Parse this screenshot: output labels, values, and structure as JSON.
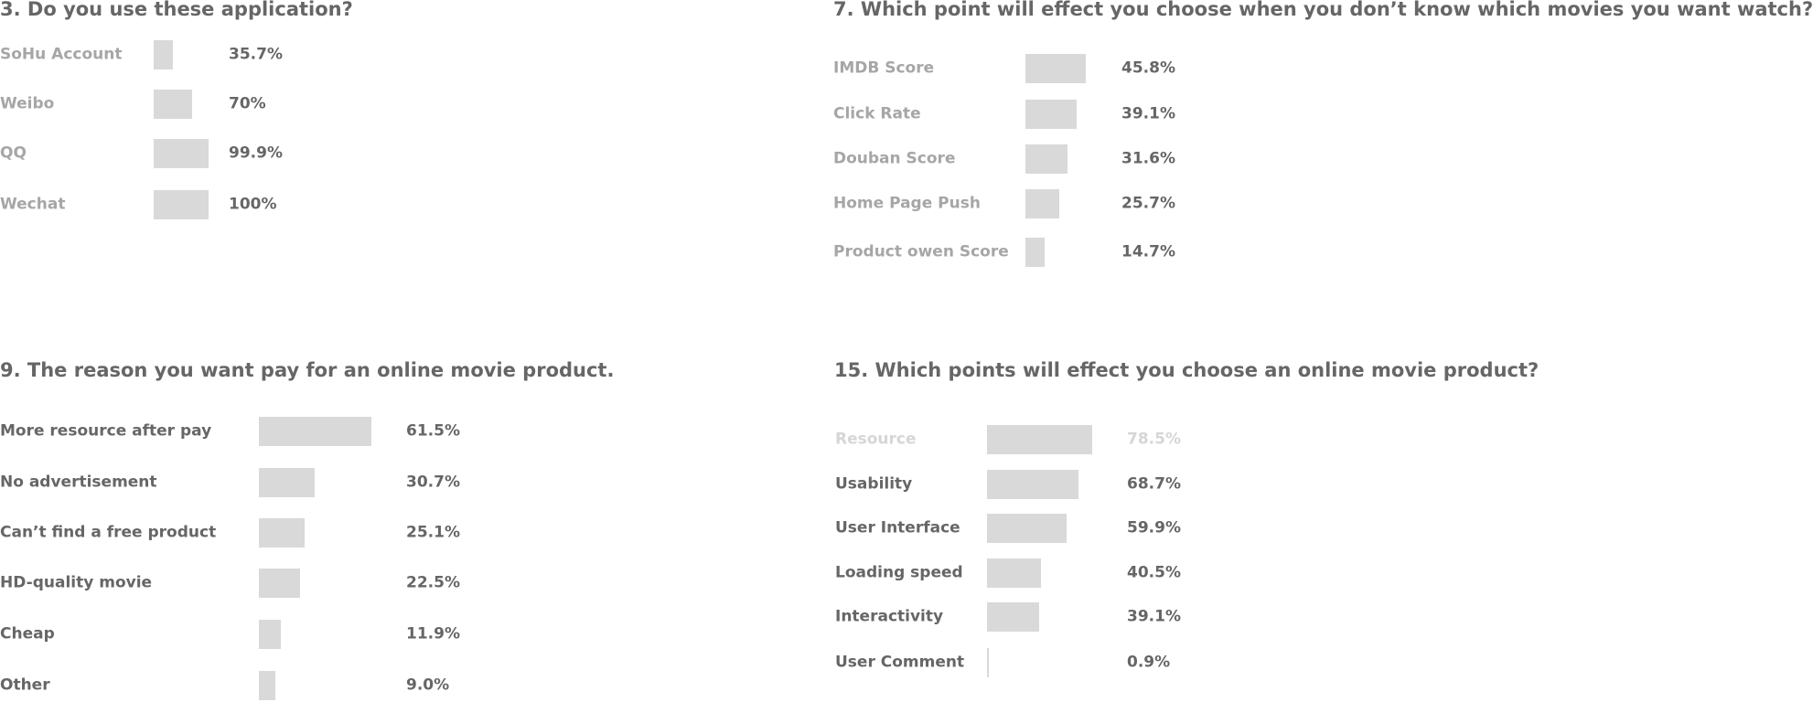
{
  "chart_data": [
    {
      "type": "bar",
      "orientation": "horizontal",
      "title": "3. Do you use these application?",
      "categories": [
        "SoHu Account",
        "Weibo",
        "QQ",
        "Wechat"
      ],
      "values": [
        35.7,
        70,
        99.9,
        100
      ],
      "value_labels": [
        "35.7%",
        "70%",
        "99.9%",
        "100%"
      ],
      "xlim": [
        0,
        100
      ],
      "bar_color": "#d9d9d9",
      "label_color": "#a6a6a6",
      "grid": false
    },
    {
      "type": "bar",
      "orientation": "horizontal",
      "title": "7. Which point will effect you choose when you don’t know which movies you want watch?",
      "categories": [
        "IMDB Score",
        "Click Rate",
        "Douban Score",
        "Home Page Push",
        "Product owen Score"
      ],
      "values": [
        45.8,
        39.1,
        31.6,
        25.7,
        14.7
      ],
      "value_labels": [
        "45.8%",
        "39.1%",
        "31.6%",
        "25.7%",
        "14.7%"
      ],
      "xlim": [
        0,
        100
      ],
      "bar_color": "#d9d9d9",
      "label_color": "#a6a6a6",
      "grid": false
    },
    {
      "type": "bar",
      "orientation": "horizontal",
      "title": "9. The reason you want pay for an online movie product.",
      "categories": [
        "More resource after pay",
        "No advertisement",
        "Can’t find a free product",
        "HD-quality movie",
        "Cheap",
        "Other"
      ],
      "values": [
        61.5,
        30.7,
        25.1,
        22.5,
        11.9,
        9.0
      ],
      "value_labels": [
        "61.5%",
        "30.7%",
        "25.1%",
        "22.5%",
        "11.9%",
        "9.0%"
      ],
      "xlim": [
        0,
        100
      ],
      "bar_color": "#d9d9d9",
      "label_color": "#666666",
      "grid": false
    },
    {
      "type": "bar",
      "orientation": "horizontal",
      "title": "15. Which points will effect you choose an online movie product?",
      "categories": [
        "Resource",
        "Usability",
        "User Interface",
        "Loading speed",
        "Interactivity",
        "User Comment"
      ],
      "values": [
        78.5,
        68.7,
        59.9,
        40.5,
        39.1,
        0.9
      ],
      "value_labels": [
        "78.5%",
        "68.7%",
        "59.9%",
        "40.5%",
        "39.1%",
        "0.9%"
      ],
      "xlim": [
        0,
        100
      ],
      "bar_color": "#d9d9d9",
      "label_color": "#666666",
      "faded_color": "#d6d6d6",
      "faded_rows": [
        0
      ],
      "grid": false
    }
  ]
}
